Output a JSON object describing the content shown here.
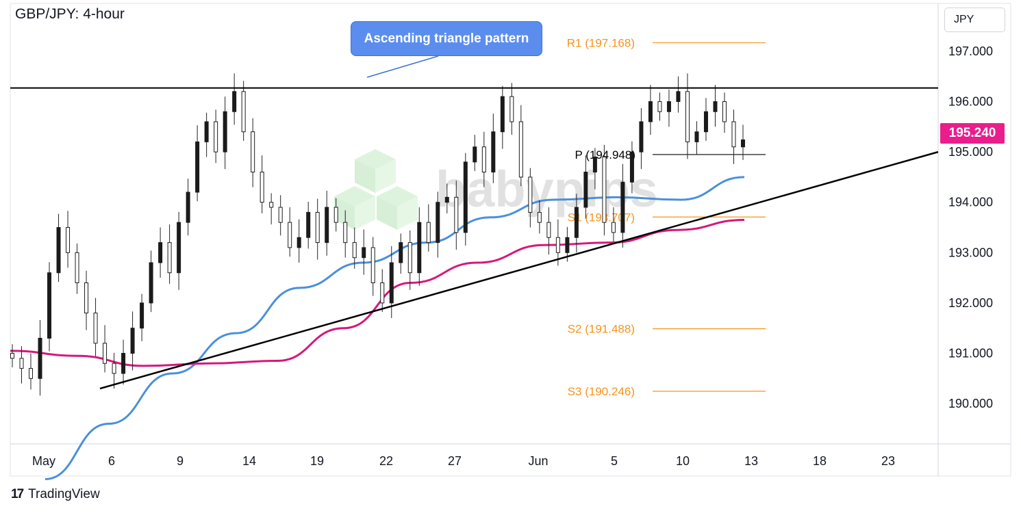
{
  "header": {
    "title": "GBP/JPY: 4-hour"
  },
  "currency_button": {
    "label": "JPY"
  },
  "current_price": {
    "label": "195.240",
    "value": 195.24,
    "color": "#e91e8c"
  },
  "callout": {
    "text": "Ascending triangle pattern",
    "color": "#5b8def"
  },
  "watermark": {
    "text": "babypips"
  },
  "branding": {
    "logo_text": "TradingView",
    "logo_mark": "17"
  },
  "chart_data": {
    "type": "line",
    "title": "GBP/JPY: 4-hour",
    "y_ticks": [
      "197.000",
      "196.000",
      "195.000",
      "194.000",
      "193.000",
      "192.000",
      "191.000",
      "190.000"
    ],
    "y_tick_values": [
      197,
      196,
      195,
      194,
      193,
      192,
      191,
      190
    ],
    "x_ticks": [
      "May",
      "6",
      "9",
      "14",
      "19",
      "22",
      "27",
      "Jun",
      "5",
      "10",
      "13",
      "18",
      "23"
    ],
    "ylim": [
      189.2,
      197.95
    ],
    "grid": false,
    "levels": [
      {
        "label": "R1 (197.168)",
        "value": 197.168,
        "color": "#f7931a"
      },
      {
        "label": "P (194.948)",
        "value": 194.948,
        "color": "#000000"
      },
      {
        "label": "S1 (193.707)",
        "value": 193.707,
        "color": "#f7931a"
      },
      {
        "label": "S2 (191.488)",
        "value": 191.488,
        "color": "#f7931a"
      },
      {
        "label": "S3 (190.246)",
        "value": 190.246,
        "color": "#f7931a"
      }
    ],
    "resistance_line": {
      "value": 196.27,
      "color": "#000000"
    },
    "support_line": {
      "start": 190.3,
      "end": 195.0,
      "color": "#000000"
    },
    "series": [
      {
        "color": "#4a90d9",
        "values": [
          188.5,
          189.6,
          190.6,
          191.4,
          192.3,
          192.8,
          193.2,
          193.7,
          194.05,
          194.1,
          194.05,
          194.5
        ]
      },
      {
        "color": "#d6187a",
        "values": [
          191.05,
          190.95,
          190.75,
          190.8,
          190.85,
          191.5,
          192.4,
          192.8,
          193.15,
          193.2,
          193.45,
          193.65
        ]
      }
    ],
    "candles_close": [
      190.9,
      190.7,
      190.5,
      191.3,
      192.6,
      193.5,
      193.0,
      192.4,
      191.8,
      191.2,
      190.8,
      190.6,
      191.0,
      191.5,
      192.0,
      192.8,
      193.2,
      192.6,
      193.6,
      194.2,
      195.2,
      195.6,
      195.0,
      195.8,
      196.2,
      195.4,
      194.6,
      194.0,
      193.9,
      193.6,
      193.1,
      193.3,
      193.8,
      193.2,
      193.9,
      193.6,
      193.2,
      192.9,
      193.1,
      192.4,
      192.0,
      192.8,
      193.2,
      192.6,
      193.6,
      193.2,
      194.0,
      194.1,
      193.4,
      194.8,
      195.1,
      194.6,
      195.4,
      196.1,
      195.6,
      194.5,
      193.8,
      193.6,
      193.3,
      193.0,
      193.3,
      193.9,
      194.6,
      194.9,
      193.6,
      193.4,
      194.4,
      195.0,
      195.6,
      196.0,
      195.8,
      196.0,
      196.2,
      195.2,
      195.4,
      195.8,
      196.0,
      195.6,
      195.1,
      195.24
    ]
  }
}
